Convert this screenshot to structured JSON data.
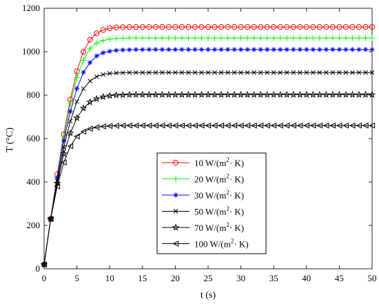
{
  "chart_data": {
    "type": "line",
    "xlabel": "t  (s)",
    "ylabel": "T (°C)",
    "xlim": [
      0,
      50
    ],
    "ylim": [
      0,
      1200
    ],
    "xticks": [
      0,
      5,
      10,
      15,
      20,
      25,
      30,
      35,
      40,
      45,
      50
    ],
    "yticks": [
      0,
      200,
      400,
      600,
      800,
      1000,
      1200
    ],
    "grid": false,
    "legend_position": "center-right",
    "x": [
      0,
      1,
      2,
      3,
      4,
      5,
      6,
      7,
      8,
      9,
      10,
      11,
      12,
      13,
      14,
      15,
      16,
      17,
      18,
      19,
      20,
      21,
      22,
      23,
      24,
      25,
      26,
      27,
      28,
      29,
      30,
      31,
      32,
      33,
      34,
      35,
      36,
      37,
      38,
      39,
      40,
      41,
      42,
      43,
      44,
      45,
      46,
      47,
      48,
      49,
      50
    ],
    "series": [
      {
        "name": "10 W/(m2· K)",
        "name_base": "10 W/(m",
        "name_sup": "2",
        "name_tail": "· K)",
        "color": "#ff0000",
        "marker": "circle",
        "values": [
          20,
          230,
          435,
          620,
          780,
          910,
          1000,
          1055,
          1085,
          1100,
          1108,
          1112,
          1113,
          1114,
          1114,
          1114,
          1114,
          1114,
          1114,
          1114,
          1114,
          1114,
          1114,
          1114,
          1114,
          1114,
          1114,
          1114,
          1114,
          1114,
          1114,
          1114,
          1114,
          1114,
          1114,
          1114,
          1114,
          1114,
          1114,
          1114,
          1114,
          1114,
          1114,
          1114,
          1114,
          1114,
          1114,
          1114,
          1114,
          1114,
          1114
        ]
      },
      {
        "name": "20 W/(m2· K)",
        "name_base": "20 W/(m",
        "name_sup": "2",
        "name_tail": "· K)",
        "color": "#00ff00",
        "marker": "plus",
        "values": [
          20,
          230,
          425,
          605,
          760,
          880,
          960,
          1015,
          1040,
          1052,
          1058,
          1061,
          1062,
          1063,
          1063,
          1063,
          1063,
          1063,
          1063,
          1063,
          1063,
          1063,
          1063,
          1063,
          1063,
          1063,
          1063,
          1063,
          1063,
          1063,
          1063,
          1063,
          1063,
          1063,
          1063,
          1063,
          1063,
          1063,
          1063,
          1063,
          1063,
          1063,
          1063,
          1063,
          1063,
          1063,
          1063,
          1063,
          1063,
          1063,
          1063
        ]
      },
      {
        "name": "30 W/(m2· K)",
        "name_base": "30 W/(m",
        "name_sup": "2",
        "name_tail": "· K)",
        "color": "#0000ff",
        "marker": "asterisk",
        "values": [
          20,
          230,
          420,
          590,
          725,
          830,
          905,
          950,
          980,
          995,
          1002,
          1006,
          1008,
          1009,
          1010,
          1010,
          1010,
          1010,
          1010,
          1010,
          1010,
          1010,
          1010,
          1010,
          1010,
          1010,
          1010,
          1010,
          1010,
          1010,
          1010,
          1010,
          1010,
          1010,
          1010,
          1010,
          1010,
          1010,
          1010,
          1010,
          1010,
          1010,
          1010,
          1010,
          1010,
          1010,
          1010,
          1010,
          1010,
          1010,
          1010
        ]
      },
      {
        "name": "50 W/(m2· K)",
        "name_base": "50 W/(m",
        "name_sup": "2",
        "name_tail": "· K)",
        "color": "#000000",
        "marker": "x",
        "values": [
          20,
          230,
          405,
          560,
          680,
          770,
          830,
          865,
          885,
          895,
          900,
          902,
          903,
          904,
          904,
          904,
          904,
          904,
          904,
          904,
          904,
          904,
          904,
          904,
          904,
          904,
          904,
          904,
          904,
          904,
          904,
          904,
          904,
          904,
          904,
          904,
          904,
          904,
          904,
          904,
          904,
          904,
          904,
          904,
          904,
          904,
          904,
          904,
          904,
          904,
          904
        ]
      },
      {
        "name": "70 W/(m2· K)",
        "name_base": "70 W/(m",
        "name_sup": "2",
        "name_tail": "· K)",
        "color": "#000000",
        "marker": "star",
        "values": [
          20,
          230,
          395,
          530,
          625,
          695,
          740,
          768,
          783,
          792,
          797,
          800,
          801,
          802,
          802,
          802,
          802,
          802,
          802,
          802,
          802,
          802,
          802,
          802,
          802,
          802,
          802,
          802,
          802,
          802,
          802,
          802,
          802,
          802,
          802,
          802,
          802,
          802,
          802,
          802,
          802,
          802,
          802,
          802,
          802,
          802,
          802,
          802,
          802,
          802,
          802
        ]
      },
      {
        "name": "100 W/(m2· K)",
        "name_base": "100 W/(m",
        "name_sup": "2",
        "name_tail": "· K)",
        "color": "#000000",
        "marker": "triangle-left",
        "values": [
          20,
          230,
          380,
          490,
          565,
          610,
          632,
          645,
          652,
          656,
          658,
          659,
          660,
          660,
          660,
          660,
          660,
          660,
          660,
          660,
          660,
          660,
          660,
          660,
          660,
          660,
          660,
          660,
          660,
          660,
          660,
          660,
          660,
          660,
          660,
          660,
          660,
          660,
          660,
          660,
          660,
          660,
          660,
          660,
          660,
          660,
          660,
          660,
          660,
          660,
          660
        ]
      }
    ]
  }
}
